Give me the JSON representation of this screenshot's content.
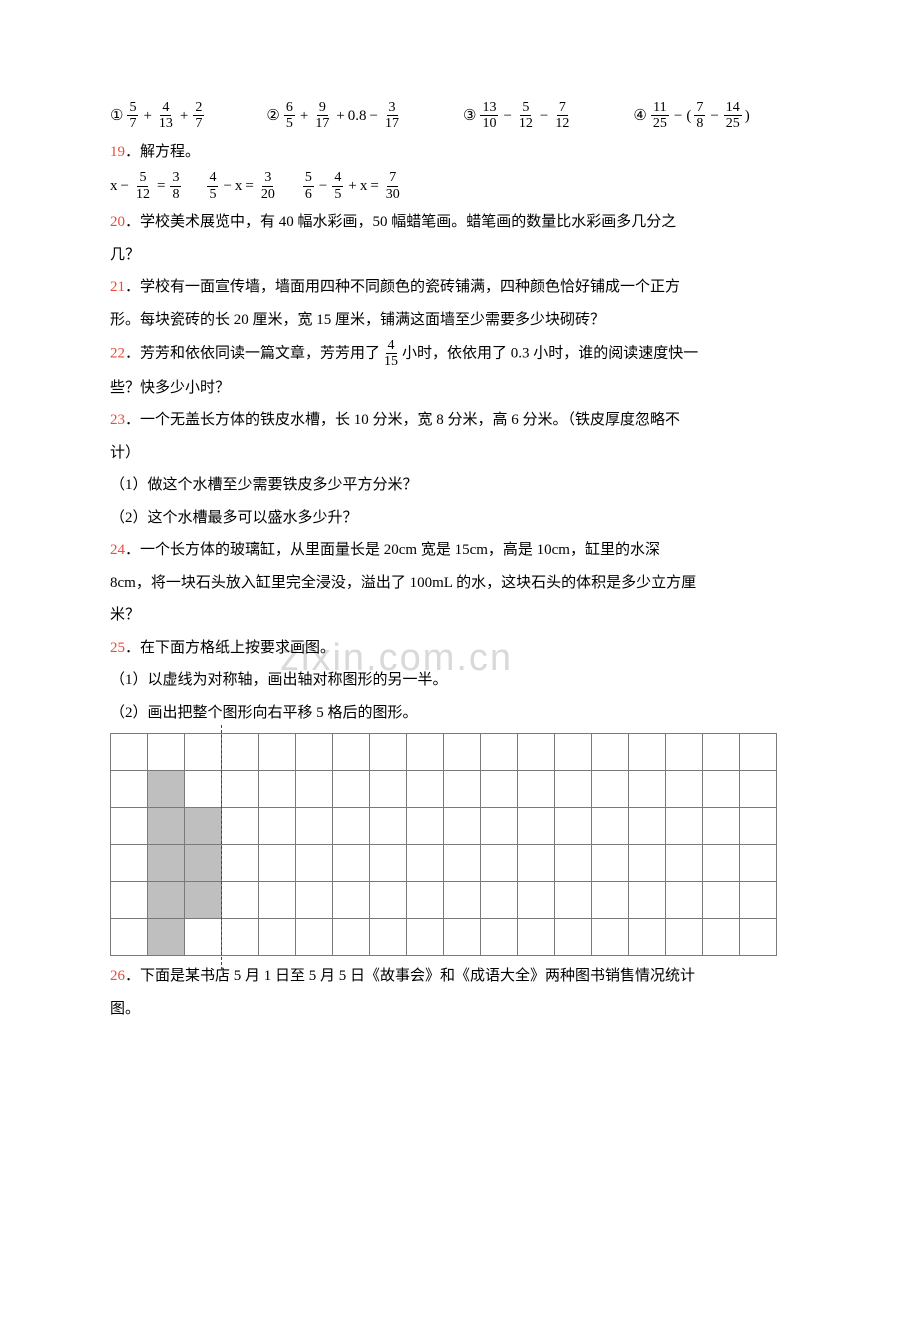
{
  "row1": {
    "items": [
      {
        "circ": "①",
        "parts": [
          "frac:5:7",
          "op:+",
          "frac:4:13",
          "op:+",
          "frac:2:7"
        ]
      },
      {
        "circ": "②",
        "parts": [
          "frac:6:5",
          "op:+",
          "frac:9:17",
          "op:+",
          "text:0.8",
          "op:−",
          "frac:3:17"
        ]
      },
      {
        "circ": "③",
        "parts": [
          "frac:13:10",
          "op:−",
          "frac:5:12",
          "op:−",
          "frac:7:12"
        ]
      },
      {
        "circ": "④",
        "parts": [
          "frac:11:25",
          "op:−",
          "paren:(",
          "frac:7:8",
          "op:−",
          "frac:14:25",
          "paren:)"
        ]
      }
    ]
  },
  "q19": {
    "num": "19",
    "text": "．解方程。"
  },
  "eqrow": {
    "eqs": [
      [
        "text:x",
        "op:−",
        "frac:5:12",
        "op:=",
        "frac:3:8"
      ],
      [
        "frac:4:5",
        "op:−",
        "text:x",
        "op:=",
        "frac:3:20"
      ],
      [
        "frac:5:6",
        "op:−",
        "frac:4:5",
        "op:+",
        "text:x",
        "op:=",
        "frac:7:30"
      ]
    ]
  },
  "q20": {
    "num": "20",
    "line1": "．学校美术展览中，有 40 幅水彩画，50 幅蜡笔画。蜡笔画的数量比水彩画多几分之",
    "line2": "几？"
  },
  "q21": {
    "num": "21",
    "line1": "．学校有一面宣传墙，墙面用四种不同颜色的瓷砖铺满，四种颜色恰好铺成一个正方",
    "line2": "形。每块瓷砖的长 20 厘米，宽 15 厘米，铺满这面墙至少需要多少块砌砖？"
  },
  "q22": {
    "num": "22",
    "pre": "．芳芳和依依同读一篇文章，芳芳用了",
    "frac_num": "4",
    "frac_den": "15",
    "post": "小时，依依用了 0.3 小时，谁的阅读速度快一",
    "line2": "些？快多少小时？"
  },
  "q23": {
    "num": "23",
    "line1": "．一个无盖长方体的铁皮水槽，长 10 分米，宽 8 分米，高 6 分米。（铁皮厚度忽略不",
    "line2": "计）",
    "sub1": "（1）做这个水槽至少需要铁皮多少平方分米？",
    "sub2": "（2）这个水槽最多可以盛水多少升？"
  },
  "q24": {
    "num": "24",
    "line1": "．一个长方体的玻璃缸，从里面量长是 20cm 宽是 15cm，高是 10cm，缸里的水深",
    "line2": "8cm，将一块石头放入缸里完全浸没，溢出了 100mL 的水，这块石头的体积是多少立方厘",
    "line3": "米？"
  },
  "q25": {
    "num": "25",
    "line1": "．在下面方格纸上按要求画图。",
    "sub1": "（1）以虚线为对称轴，画出轴对称图形的另一半。",
    "sub2": "（2）画出把整个图形向右平移 5 格后的图形。"
  },
  "grid": {
    "cols": 18,
    "rows": 6,
    "dashed_col": 3,
    "shaded": [
      [
        1,
        1
      ],
      [
        2,
        2
      ],
      [
        2,
        1
      ],
      [
        3,
        1
      ],
      [
        3,
        2
      ],
      [
        4,
        2
      ],
      [
        4,
        1
      ],
      [
        5,
        1
      ]
    ]
  },
  "q26": {
    "num": "26",
    "line1": "．下面是某书店 5 月 1 日至 5 月 5 日《故事会》和《成语大全》两种图书销售情况统计",
    "line2": "图。"
  },
  "watermark": "zixin.com.cn"
}
